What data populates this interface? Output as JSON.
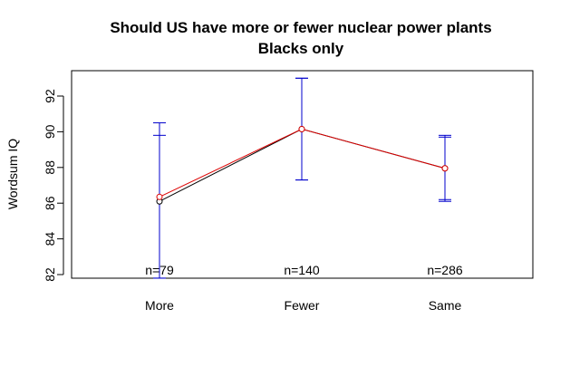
{
  "chart_data": {
    "type": "line",
    "title": "Should US have more or fewer nuclear power plants",
    "subtitle": "Blacks only",
    "xlabel": "",
    "ylabel": "Wordsum IQ",
    "categories": [
      "More",
      "Fewer",
      "Same"
    ],
    "ylim": [
      82,
      93
    ],
    "yticks": [
      82,
      84,
      86,
      88,
      90,
      92
    ],
    "series": [
      {
        "name": "black",
        "color": "#000000",
        "values": [
          86.1,
          90.15,
          87.95
        ]
      },
      {
        "name": "red",
        "color": "#dd0000",
        "values": [
          86.35,
          90.15,
          87.95
        ]
      }
    ],
    "error_bars": [
      {
        "category": "More",
        "outer": [
          81.8,
          90.5
        ],
        "inner": [
          81.8,
          89.8
        ]
      },
      {
        "category": "Fewer",
        "outer": [
          87.3,
          93.0
        ],
        "inner": [
          87.3,
          93.0
        ]
      },
      {
        "category": "Same",
        "outer": [
          86.1,
          89.8
        ],
        "inner": [
          86.2,
          89.7
        ]
      }
    ],
    "error_bar_color": "#0000cc",
    "n_labels": [
      "n=79",
      "n=140",
      "n=286"
    ]
  }
}
